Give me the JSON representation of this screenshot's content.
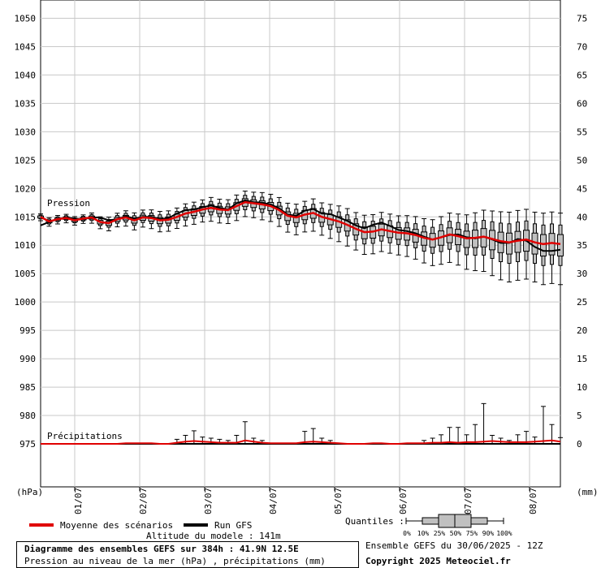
{
  "chart_data": {
    "type": "box-ensemble",
    "ylabel_left": "(hPa)",
    "ylabel_right": "(mm)",
    "y_left_ticks": [
      975,
      980,
      985,
      990,
      995,
      1000,
      1005,
      1010,
      1015,
      1020,
      1025,
      1030,
      1035,
      1040,
      1045,
      1050
    ],
    "y_right_ticks": [
      0,
      5,
      10,
      15,
      20,
      25,
      30,
      35,
      40,
      45,
      50,
      55,
      60,
      65,
      70,
      75
    ],
    "ylim_left": [
      975,
      1050
    ],
    "ylim_right": [
      0,
      75
    ],
    "date_ticks": [
      "01/07",
      "02/07",
      "03/07",
      "04/07",
      "05/07",
      "06/07",
      "07/07",
      "08/07"
    ],
    "series_labels": {
      "pressure": "Pression",
      "precip": "Précipitations"
    },
    "pressure_mean": [
      1015.0,
      1014.2,
      1014.6,
      1014.8,
      1014.4,
      1014.7,
      1014.9,
      1014.1,
      1013.9,
      1014.6,
      1014.9,
      1014.4,
      1014.9,
      1014.8,
      1014.4,
      1014.5,
      1015.0,
      1015.6,
      1015.9,
      1016.3,
      1016.6,
      1016.3,
      1016.2,
      1016.9,
      1017.6,
      1017.4,
      1017.2,
      1016.9,
      1016.2,
      1015.2,
      1014.9,
      1015.4,
      1015.7,
      1015.0,
      1014.6,
      1014.2,
      1013.6,
      1012.9,
      1012.3,
      1012.4,
      1012.8,
      1012.5,
      1012.2,
      1012.1,
      1011.8,
      1011.3,
      1011.0,
      1011.4,
      1011.9,
      1011.6,
      1011.2,
      1011.3,
      1011.5,
      1011.1,
      1010.7,
      1010.5,
      1010.8,
      1011.0,
      1010.5,
      1010.2,
      1010.4,
      1010.2
    ],
    "pressure_run": [
      1013.5,
      1014.1,
      1014.6,
      1014.9,
      1014.7,
      1014.6,
      1014.9,
      1014.9,
      1014.4,
      1014.6,
      1015.1,
      1014.7,
      1015.0,
      1015.0,
      1014.6,
      1014.8,
      1015.6,
      1016.2,
      1016.3,
      1016.7,
      1017.0,
      1016.6,
      1016.3,
      1017.4,
      1017.9,
      1017.6,
      1017.5,
      1017.2,
      1016.5,
      1015.4,
      1015.2,
      1016.1,
      1016.4,
      1015.6,
      1015.5,
      1014.9,
      1014.3,
      1013.5,
      1013.0,
      1013.6,
      1014.0,
      1013.4,
      1012.7,
      1012.5,
      1012.1,
      1011.5,
      1011.0,
      1011.4,
      1011.8,
      1011.9,
      1011.4,
      1011.2,
      1011.5,
      1011.0,
      1010.4,
      1010.4,
      1011.1,
      1010.8,
      1009.7,
      1009.0,
      1009.0,
      1009.2
    ],
    "pressure_spread": [
      0.4,
      0.5,
      0.5,
      0.5,
      0.5,
      0.5,
      0.6,
      0.7,
      0.8,
      0.8,
      0.9,
      1.0,
      1.0,
      1.1,
      1.2,
      1.2,
      1.2,
      1.3,
      1.3,
      1.3,
      1.4,
      1.4,
      1.4,
      1.5,
      1.5,
      1.5,
      1.6,
      1.6,
      1.7,
      1.7,
      1.8,
      1.8,
      1.9,
      1.9,
      2.0,
      2.1,
      2.2,
      2.2,
      2.3,
      2.3,
      2.3,
      2.3,
      2.3,
      2.4,
      2.5,
      2.6,
      2.7,
      2.8,
      2.9,
      3.0,
      3.2,
      3.4,
      3.6,
      3.8,
      4.0,
      4.1,
      4.1,
      4.1,
      4.1,
      4.2,
      4.2,
      4.2
    ],
    "precip_mean": [
      0,
      0,
      0,
      0,
      0,
      0,
      0,
      0,
      0,
      0,
      0.1,
      0.1,
      0.1,
      0.1,
      0,
      0,
      0.2,
      0.4,
      0.5,
      0.4,
      0.3,
      0.2,
      0.2,
      0.2,
      0.6,
      0.4,
      0.2,
      0.1,
      0.1,
      0.1,
      0.1,
      0.3,
      0.4,
      0.3,
      0.2,
      0.1,
      0,
      0,
      0,
      0.1,
      0.1,
      0,
      0,
      0.1,
      0.1,
      0.1,
      0.2,
      0.2,
      0.3,
      0.2,
      0.3,
      0.3,
      0.4,
      0.5,
      0.4,
      0.3,
      0.3,
      0.3,
      0.4,
      0.5,
      0.6,
      0.4
    ],
    "precip_max": [
      0,
      0,
      0,
      0,
      0,
      0,
      0,
      0,
      0,
      0,
      0.2,
      0.2,
      0.2,
      0.2,
      0,
      0,
      0.8,
      1.5,
      2.3,
      1.2,
      1.0,
      0.8,
      0.6,
      1.5,
      3.9,
      1.0,
      0.6,
      0.3,
      0.3,
      0.3,
      0.3,
      2.2,
      2.7,
      1.0,
      0.6,
      0.3,
      0,
      0,
      0,
      0.3,
      0.3,
      0,
      0,
      0.3,
      0.3,
      0.6,
      1.0,
      1.6,
      2.9,
      2.9,
      1.6,
      3.4,
      7.1,
      1.5,
      1.0,
      0.6,
      1.6,
      2.2,
      1.2,
      6.6,
      3.4,
      1.1
    ],
    "x_range": [
      0,
      61
    ]
  },
  "legend": {
    "mean_label": "Moyenne des scénarios",
    "run_label": "Run GFS",
    "mean_color": "#e00000",
    "run_color": "#000000",
    "quantiles_label": "Quantiles :",
    "quantile_marks": [
      "0%",
      "10%",
      "25%",
      "50%",
      "75%",
      "90%",
      "100%"
    ]
  },
  "footer": {
    "altitude": "Altitude du modele : 141m",
    "title": "Diagramme des ensembles GEFS sur 384h : 41.9N 12.5E",
    "subtitle": "Pression au niveau de la mer (hPa) , précipitations (mm)",
    "ensemble": "Ensemble GEFS du 30/06/2025 - 12Z",
    "copyright": "Copyright 2025 Meteociel.fr"
  },
  "colors": {
    "grid": "#c8c8c8",
    "box": "#c0c0c0",
    "mean": "#e00000"
  }
}
